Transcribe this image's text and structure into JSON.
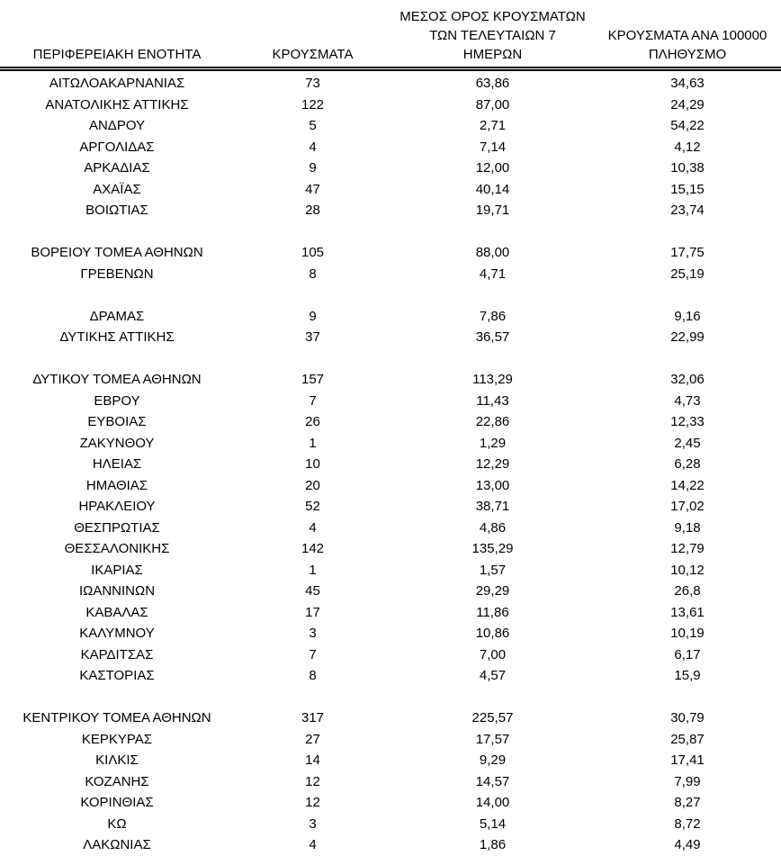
{
  "table": {
    "columns": [
      {
        "id": "region",
        "lines": [
          "ΠΕΡΙΦΕΡΕΙΑΚΗ ΕΝΟΤΗΤΑ"
        ]
      },
      {
        "id": "cases",
        "lines": [
          "ΚΡΟΥΣΜΑΤΑ"
        ]
      },
      {
        "id": "avg7",
        "lines": [
          "ΜΕΣΟΣ ΟΡΟΣ ΚΡΟΥΣΜΑΤΩΝ",
          "ΤΩΝ ΤΕΛΕΥΤΑΙΩΝ 7",
          "ΗΜΕΡΩΝ"
        ]
      },
      {
        "id": "per100k",
        "lines": [
          "ΚΡΟΥΣΜΑΤΑ ΑΝΑ 100000",
          "ΠΛΗΘΥΣΜΟ"
        ]
      }
    ],
    "rows": [
      [
        "ΑΙΤΩΛΟΑΚΑΡΝΑΝΙΑΣ",
        "73",
        "63,86",
        "34,63"
      ],
      [
        "ΑΝΑΤΟΛΙΚΗΣ ΑΤΤΙΚΗΣ",
        "122",
        "87,00",
        "24,29"
      ],
      [
        "ΑΝΔΡΟΥ",
        "5",
        "2,71",
        "54,22"
      ],
      [
        "ΑΡΓΟΛΙΔΑΣ",
        "4",
        "7,14",
        "4,12"
      ],
      [
        "ΑΡΚΑΔΙΑΣ",
        "9",
        "12,00",
        "10,38"
      ],
      [
        "ΑΧΑΪΑΣ",
        "47",
        "40,14",
        "15,15"
      ],
      [
        "ΒΟΙΩΤΙΑΣ",
        "28",
        "19,71",
        "23,74"
      ],
      [
        "",
        "",
        "",
        ""
      ],
      [
        "ΒΟΡΕΙΟΥ ΤΟΜΕΑ ΑΘΗΝΩΝ",
        "105",
        "88,00",
        "17,75"
      ],
      [
        "ΓΡΕΒΕΝΩΝ",
        "8",
        "4,71",
        "25,19"
      ],
      [
        "",
        "",
        "",
        ""
      ],
      [
        "ΔΡΑΜΑΣ",
        "9",
        "7,86",
        "9,16"
      ],
      [
        "ΔΥΤΙΚΗΣ ΑΤΤΙΚΗΣ",
        "37",
        "36,57",
        "22,99"
      ],
      [
        "",
        "",
        "",
        ""
      ],
      [
        "ΔΥΤΙΚΟΥ ΤΟΜΕΑ ΑΘΗΝΩΝ",
        "157",
        "113,29",
        "32,06"
      ],
      [
        "ΕΒΡΟΥ",
        "7",
        "11,43",
        "4,73"
      ],
      [
        "ΕΥΒΟΙΑΣ",
        "26",
        "22,86",
        "12,33"
      ],
      [
        "ΖΑΚΥΝΘΟΥ",
        "1",
        "1,29",
        "2,45"
      ],
      [
        "ΗΛΕΙΑΣ",
        "10",
        "12,29",
        "6,28"
      ],
      [
        "ΗΜΑΘΙΑΣ",
        "20",
        "13,00",
        "14,22"
      ],
      [
        "ΗΡΑΚΛΕΙΟΥ",
        "52",
        "38,71",
        "17,02"
      ],
      [
        "ΘΕΣΠΡΩΤΙΑΣ",
        "4",
        "4,86",
        "9,18"
      ],
      [
        "ΘΕΣΣΑΛΟΝΙΚΗΣ",
        "142",
        "135,29",
        "12,79"
      ],
      [
        "ΙΚΑΡΙΑΣ",
        "1",
        "1,57",
        "10,12"
      ],
      [
        "ΙΩΑΝΝΙΝΩΝ",
        "45",
        "29,29",
        "26,8"
      ],
      [
        "ΚΑΒΑΛΑΣ",
        "17",
        "11,86",
        "13,61"
      ],
      [
        "ΚΑΛΥΜΝΟΥ",
        "3",
        "10,86",
        "10,19"
      ],
      [
        "ΚΑΡΔΙΤΣΑΣ",
        "7",
        "7,00",
        "6,17"
      ],
      [
        "ΚΑΣΤΟΡΙΑΣ",
        "8",
        "4,57",
        "15,9"
      ],
      [
        "",
        "",
        "",
        ""
      ],
      [
        "ΚΕΝΤΡΙΚΟΥ ΤΟΜΕΑ ΑΘΗΝΩΝ",
        "317",
        "225,57",
        "30,79"
      ],
      [
        "ΚΕΡΚΥΡΑΣ",
        "27",
        "17,57",
        "25,87"
      ],
      [
        "ΚΙΛΚΙΣ",
        "14",
        "9,29",
        "17,41"
      ],
      [
        "ΚΟΖΑΝΗΣ",
        "12",
        "14,57",
        "7,99"
      ],
      [
        "ΚΟΡΙΝΘΙΑΣ",
        "12",
        "14,00",
        "8,27"
      ],
      [
        "ΚΩ",
        "3",
        "5,14",
        "8,72"
      ],
      [
        "ΛΑΚΩΝΙΑΣ",
        "4",
        "1,86",
        "4,49"
      ]
    ]
  },
  "chart_data": {
    "type": "table",
    "title": "",
    "columns": [
      "ΠΕΡΙΦΕΡΕΙΑΚΗ ΕΝΟΤΗΤΑ",
      "ΚΡΟΥΣΜΑΤΑ",
      "ΜΕΣΟΣ ΟΡΟΣ ΚΡΟΥΣΜΑΤΩΝ ΤΩΝ ΤΕΛΕΥΤΑΙΩΝ 7 ΗΜΕΡΩΝ",
      "ΚΡΟΥΣΜΑΤΑ ΑΝΑ 100000 ΠΛΗΘΥΣΜΟ"
    ],
    "rows": [
      [
        "ΑΙΤΩΛΟΑΚΑΡΝΑΝΙΑΣ",
        73,
        63.86,
        34.63
      ],
      [
        "ΑΝΑΤΟΛΙΚΗΣ ΑΤΤΙΚΗΣ",
        122,
        87.0,
        24.29
      ],
      [
        "ΑΝΔΡΟΥ",
        5,
        2.71,
        54.22
      ],
      [
        "ΑΡΓΟΛΙΔΑΣ",
        4,
        7.14,
        4.12
      ],
      [
        "ΑΡΚΑΔΙΑΣ",
        9,
        12.0,
        10.38
      ],
      [
        "ΑΧΑΪΑΣ",
        47,
        40.14,
        15.15
      ],
      [
        "ΒΟΙΩΤΙΑΣ",
        28,
        19.71,
        23.74
      ],
      [
        "ΒΟΡΕΙΟΥ ΤΟΜΕΑ ΑΘΗΝΩΝ",
        105,
        88.0,
        17.75
      ],
      [
        "ΓΡΕΒΕΝΩΝ",
        8,
        4.71,
        25.19
      ],
      [
        "ΔΡΑΜΑΣ",
        9,
        7.86,
        9.16
      ],
      [
        "ΔΥΤΙΚΗΣ ΑΤΤΙΚΗΣ",
        37,
        36.57,
        22.99
      ],
      [
        "ΔΥΤΙΚΟΥ ΤΟΜΕΑ ΑΘΗΝΩΝ",
        157,
        113.29,
        32.06
      ],
      [
        "ΕΒΡΟΥ",
        7,
        11.43,
        4.73
      ],
      [
        "ΕΥΒΟΙΑΣ",
        26,
        22.86,
        12.33
      ],
      [
        "ΖΑΚΥΝΘΟΥ",
        1,
        1.29,
        2.45
      ],
      [
        "ΗΛΕΙΑΣ",
        10,
        12.29,
        6.28
      ],
      [
        "ΗΜΑΘΙΑΣ",
        20,
        13.0,
        14.22
      ],
      [
        "ΗΡΑΚΛΕΙΟΥ",
        52,
        38.71,
        17.02
      ],
      [
        "ΘΕΣΠΡΩΤΙΑΣ",
        4,
        4.86,
        9.18
      ],
      [
        "ΘΕΣΣΑΛΟΝΙΚΗΣ",
        142,
        135.29,
        12.79
      ],
      [
        "ΙΚΑΡΙΑΣ",
        1,
        1.57,
        10.12
      ],
      [
        "ΙΩΑΝΝΙΝΩΝ",
        45,
        29.29,
        26.8
      ],
      [
        "ΚΑΒΑΛΑΣ",
        17,
        11.86,
        13.61
      ],
      [
        "ΚΑΛΥΜΝΟΥ",
        3,
        10.86,
        10.19
      ],
      [
        "ΚΑΡΔΙΤΣΑΣ",
        7,
        7.0,
        6.17
      ],
      [
        "ΚΑΣΤΟΡΙΑΣ",
        8,
        4.57,
        15.9
      ],
      [
        "ΚΕΝΤΡΙΚΟΥ ΤΟΜΕΑ ΑΘΗΝΩΝ",
        317,
        225.57,
        30.79
      ],
      [
        "ΚΕΡΚΥΡΑΣ",
        27,
        17.57,
        25.87
      ],
      [
        "ΚΙΛΚΙΣ",
        14,
        9.29,
        17.41
      ],
      [
        "ΚΟΖΑΝΗΣ",
        12,
        14.57,
        7.99
      ],
      [
        "ΚΟΡΙΝΘΙΑΣ",
        12,
        14.0,
        8.27
      ],
      [
        "ΚΩ",
        3,
        5.14,
        8.72
      ],
      [
        "ΛΑΚΩΝΙΑΣ",
        4,
        1.86,
        4.49
      ]
    ],
    "layout": {
      "grid": false,
      "header_rule": "double",
      "text_color": "#000000",
      "background": "#ffffff",
      "decimal_separator": ","
    }
  }
}
